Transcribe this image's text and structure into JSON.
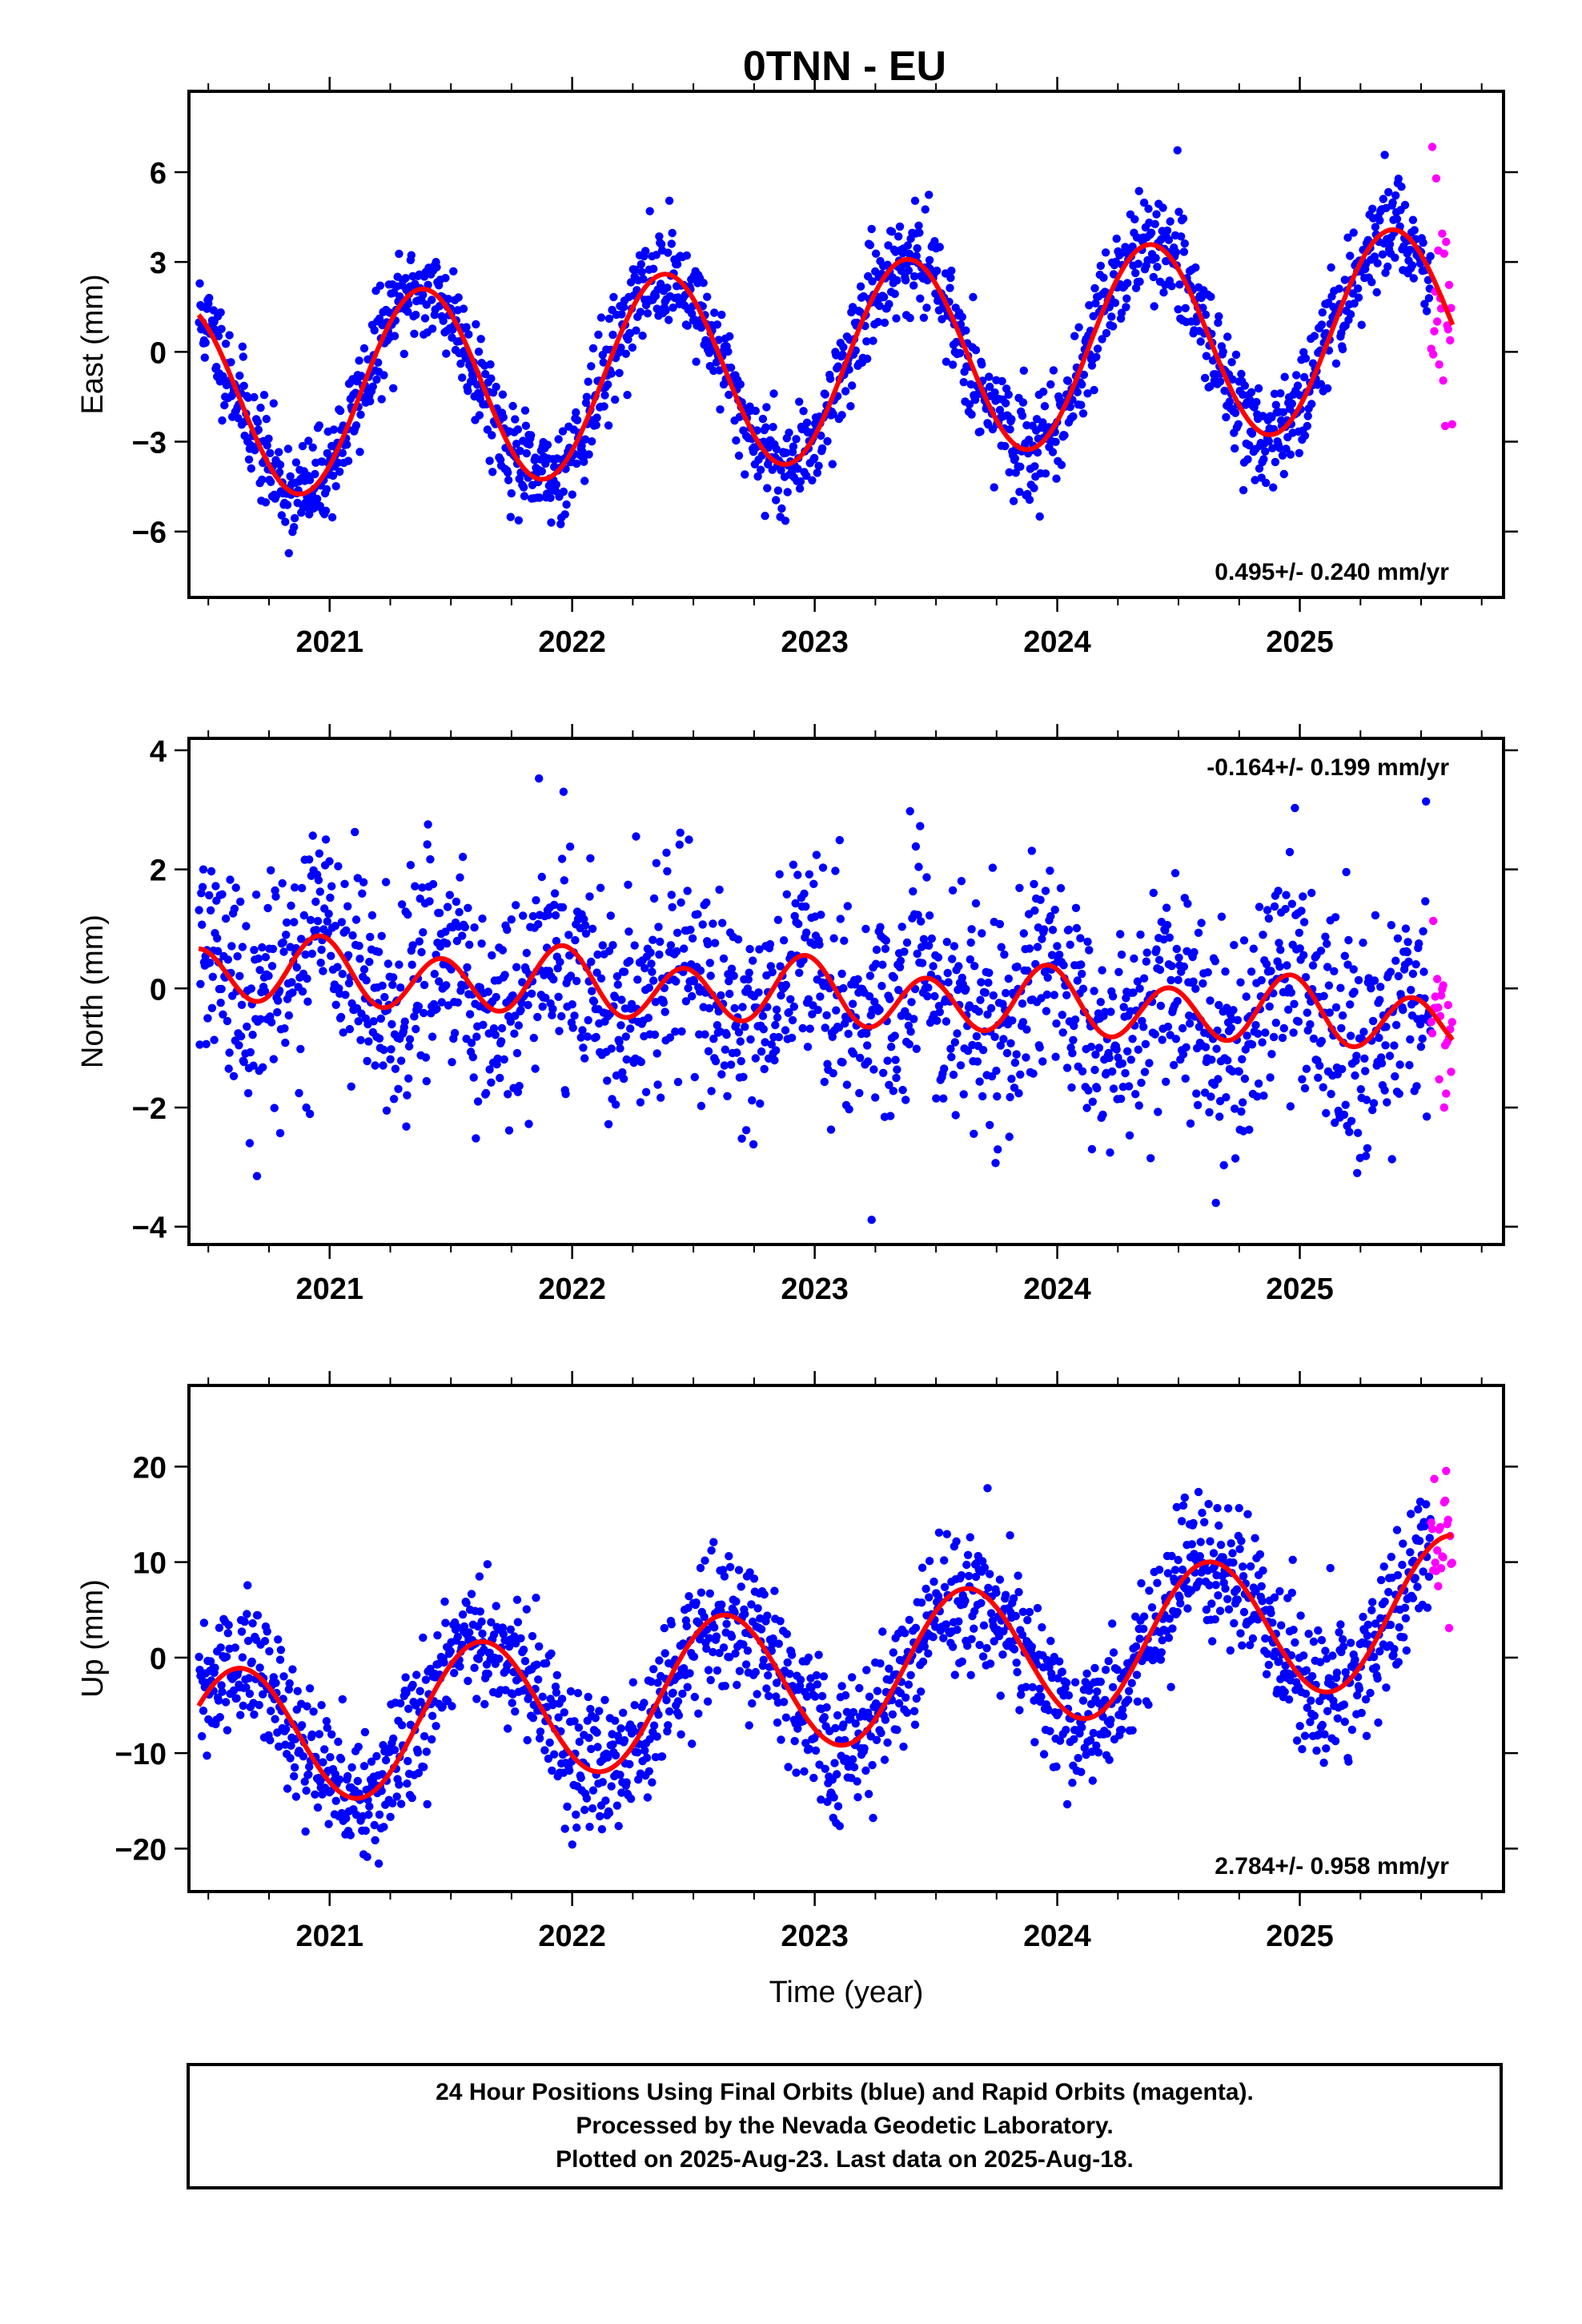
{
  "title": "0TNN - EU",
  "caption": {
    "lines": [
      "24 Hour Positions Using Final Orbits (blue) and Rapid Orbits (magenta).",
      "Processed by the Nevada Geodetic Laboratory.",
      "Plotted on 2025-Aug-23. Last data on 2025-Aug-18."
    ]
  },
  "colors": {
    "final": "#0000ff",
    "rapid": "#ff00ff",
    "model": "#ff0000",
    "frame": "#000000"
  },
  "chart_data": [
    {
      "type": "scatter",
      "ylabel": "East (mm)",
      "xlabel": "",
      "xlim": [
        2020.42,
        2025.84
      ],
      "ylim": [
        -8.2,
        8.7
      ],
      "yticks": [
        -6,
        -3,
        0,
        3,
        6
      ],
      "ytick_labels": [
        "−6",
        "−3",
        "0",
        "3",
        "6"
      ],
      "xticks": [
        2021,
        2022,
        2023,
        2024,
        2025
      ],
      "xtick_labels": [
        "2021",
        "2022",
        "2023",
        "2024",
        "2025"
      ],
      "grid": false,
      "rate_text": "0.495+/- 0.240 mm/yr",
      "rate_position": "bottom-right",
      "model": {
        "offset": -0.4,
        "trend": 0.495,
        "t_ref": 2023.0,
        "annual_amp": 3.3,
        "annual_peak": 2023.38,
        "semiannual_amp": 0.0,
        "semiannual_peak": 2023.1
      },
      "series": [
        {
          "kind": "final",
          "t_start": 2020.46,
          "t_end": 2025.54,
          "count": 1700,
          "scatter_sigma": 0.85,
          "seed": 11
        },
        {
          "kind": "rapid",
          "t_start": 2025.54,
          "t_end": 2025.63,
          "count": 22,
          "scatter_sigma": 2.2,
          "seed": 12
        }
      ]
    },
    {
      "type": "scatter",
      "ylabel": "North (mm)",
      "xlabel": "",
      "xlim": [
        2020.42,
        2025.84
      ],
      "ylim": [
        -4.3,
        4.2
      ],
      "yticks": [
        -4,
        -2,
        0,
        2,
        4
      ],
      "ytick_labels": [
        "−4",
        "−2",
        "0",
        "2",
        "4"
      ],
      "xticks": [
        2021,
        2022,
        2023,
        2024,
        2025
      ],
      "xtick_labels": [
        "2021",
        "2022",
        "2023",
        "2024",
        "2025"
      ],
      "grid": false,
      "rate_text": "-0.164+/- 0.199 mm/yr",
      "rate_position": "top-right",
      "model": {
        "offset": -0.1,
        "trend": -0.164,
        "t_ref": 2023.0,
        "annual_amp": 0.15,
        "annual_peak": 2022.95,
        "semiannual_amp": 0.5,
        "semiannual_peak": 2022.96
      },
      "series": [
        {
          "kind": "final",
          "t_start": 2020.46,
          "t_end": 2025.54,
          "count": 1700,
          "scatter_sigma": 0.95,
          "seed": 21
        },
        {
          "kind": "rapid",
          "t_start": 2025.54,
          "t_end": 2025.63,
          "count": 22,
          "scatter_sigma": 0.7,
          "seed": 22
        }
      ]
    },
    {
      "type": "scatter",
      "ylabel": "Up (mm)",
      "xlabel": "Time (year)",
      "xlim": [
        2020.42,
        2025.84
      ],
      "ylim": [
        -24.5,
        28.5
      ],
      "yticks": [
        -20,
        -10,
        0,
        10,
        20
      ],
      "ytick_labels": [
        "−20",
        "−10",
        "0",
        "10",
        "20"
      ],
      "xticks": [
        2021,
        2022,
        2023,
        2024,
        2025
      ],
      "xtick_labels": [
        "2021",
        "2022",
        "2023",
        "2024",
        "2025"
      ],
      "grid": false,
      "rate_text": "2.784+/- 0.958 mm/yr",
      "rate_position": "bottom-right",
      "model": {
        "offset": -2.0,
        "trend": 2.784,
        "t_ref": 2023.0,
        "annual_amp": 7.5,
        "annual_peak": 2023.62,
        "semiannual_amp": 0.0,
        "semiannual_peak": 2023.1
      },
      "series": [
        {
          "kind": "final",
          "t_start": 2020.46,
          "t_end": 2025.54,
          "count": 1700,
          "scatter_sigma": 3.6,
          "seed": 31
        },
        {
          "kind": "rapid",
          "t_start": 2025.54,
          "t_end": 2025.63,
          "count": 22,
          "scatter_sigma": 3.5,
          "seed": 32
        }
      ]
    }
  ]
}
